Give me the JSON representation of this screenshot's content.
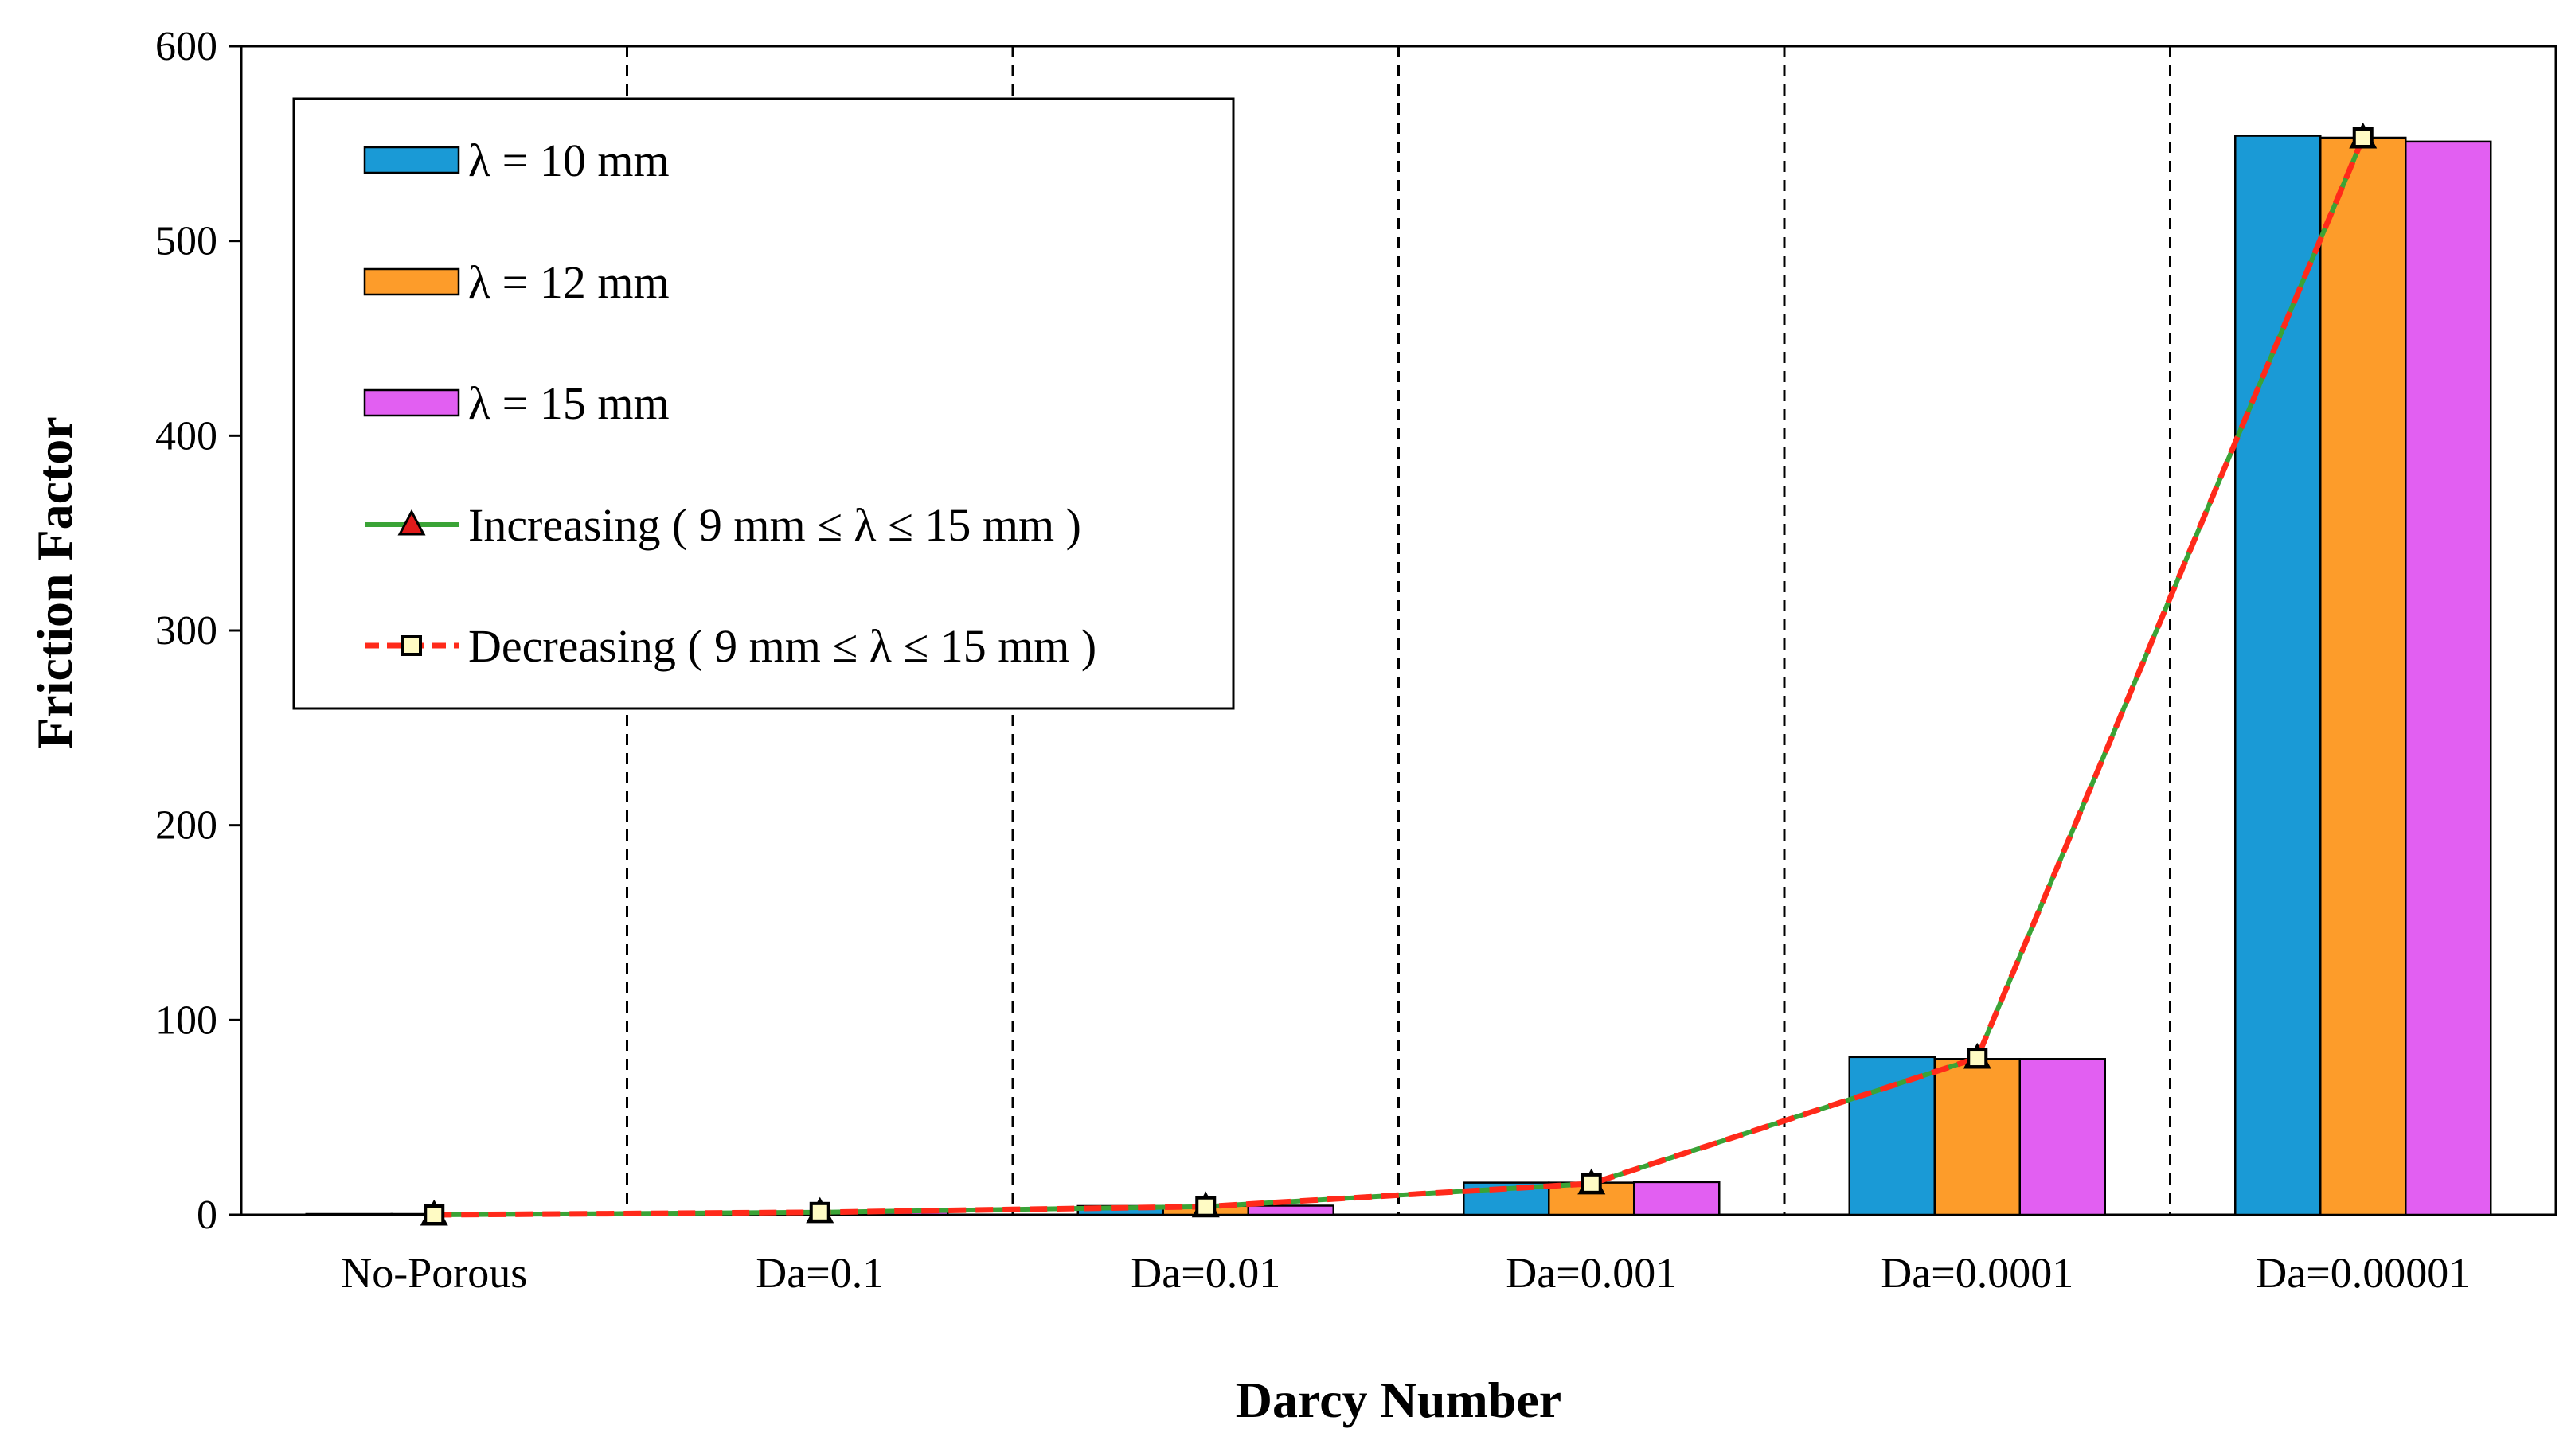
{
  "chart_data": {
    "type": "bar",
    "title": "",
    "xlabel": "Darcy Number",
    "ylabel": "Friction Factor",
    "ylim": [
      0,
      600
    ],
    "yticks": [
      0,
      100,
      200,
      300,
      400,
      500,
      600
    ],
    "categories": [
      "No-Porous",
      "Da=0.1",
      "Da=0.01",
      "Da=0.001",
      "Da=0.0001",
      "Da=0.00001"
    ],
    "series": [
      {
        "name": "λ = 10 mm",
        "kind": "bar",
        "color": "#1a9ad6",
        "values": [
          0.4,
          1.5,
          4.5,
          16.5,
          81,
          554
        ]
      },
      {
        "name": "λ = 12 mm",
        "kind": "bar",
        "color": "#fd9c2a",
        "values": [
          0.4,
          1.5,
          4.6,
          16.5,
          80,
          553
        ]
      },
      {
        "name": "λ = 15 mm",
        "kind": "bar",
        "color": "#e25ff2",
        "values": [
          0.4,
          1.5,
          4.7,
          16.8,
          80,
          551
        ]
      },
      {
        "name": "Increasing ( 9 mm ≤ λ ≤ 15 mm )",
        "kind": "line",
        "color": "#3aa336",
        "marker": "triangle",
        "marker_color": "#e11b1b",
        "values": [
          0,
          1.3,
          4.2,
          16,
          80.5,
          553
        ]
      },
      {
        "name": "Decreasing ( 9 mm ≤ λ ≤ 15 mm )",
        "kind": "line",
        "color": "#ff2a1a",
        "dashed": true,
        "marker": "square",
        "marker_color": "#fffbc4",
        "values": [
          0,
          1.3,
          4.2,
          16,
          80.5,
          553
        ]
      }
    ],
    "legend_position": "top-left",
    "category_separators": "dashed",
    "grid": false
  }
}
